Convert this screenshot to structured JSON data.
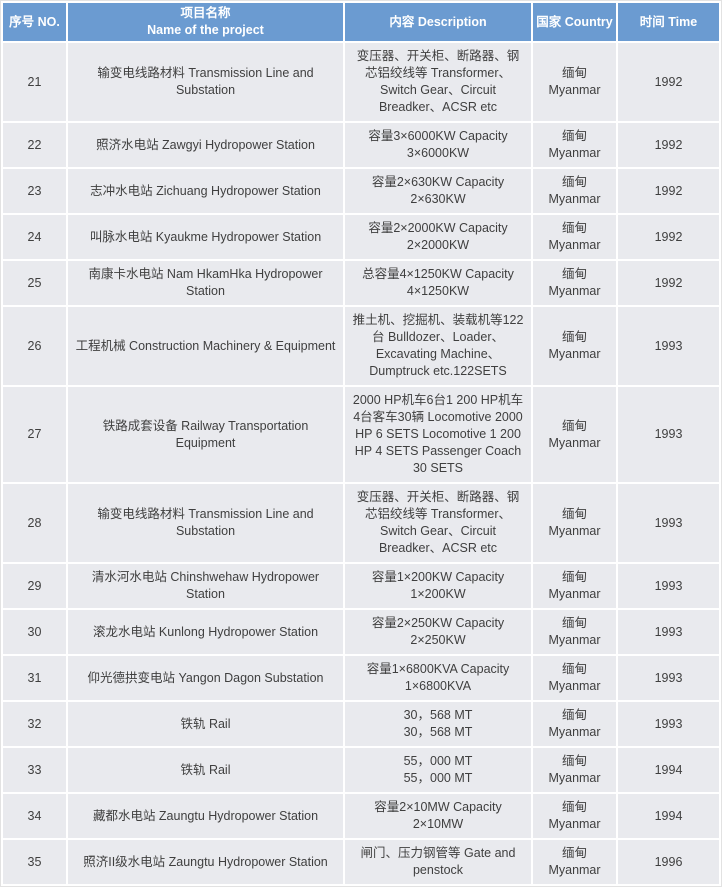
{
  "colors": {
    "header_bg": "#6B9BD1",
    "header_text": "#FFFFFF",
    "cell_bg": "#E9EAEE",
    "cell_text": "#3F3F3F",
    "divider": "#FFFFFF"
  },
  "table": {
    "headers": [
      "序号 NO.",
      "项目名称\nName of the project",
      "内容 Description",
      "国家 Country",
      "时间 Time"
    ],
    "rows": [
      {
        "no": "21",
        "name": "输变电线路材料 Transmission Line and Substation",
        "description": "变压器、开关柜、断路器、钢芯铝绞线等 Transformer、Switch Gear、Circuit Breadker、ACSR etc",
        "country": "缅甸 Myanmar",
        "time": "1992"
      },
      {
        "no": "22",
        "name": "照济水电站 Zawgyi Hydropower Station",
        "description": "容量3×6000KW Capacity 3×6000KW",
        "country": "缅甸 Myanmar",
        "time": "1992"
      },
      {
        "no": "23",
        "name": "志冲水电站 Zichuang Hydropower Station",
        "description": "容量2×630KW Capacity 2×630KW",
        "country": "缅甸 Myanmar",
        "time": "1992"
      },
      {
        "no": "24",
        "name": "叫脉水电站 Kyaukme Hydropower Station",
        "description": "容量2×2000KW Capacity 2×2000KW",
        "country": "缅甸 Myanmar",
        "time": "1992"
      },
      {
        "no": "25",
        "name": "南康卡水电站 Nam HkamHka Hydropower Station",
        "description": "总容量4×1250KW Capacity 4×1250KW",
        "country": "缅甸 Myanmar",
        "time": "1992"
      },
      {
        "no": "26",
        "name": "工程机械 Construction Machinery & Equipment",
        "description": "推土机、挖掘机、装载机等122台 Bulldozer、Loader、Excavating Machine、Dumptruck etc.122SETS",
        "country": "缅甸 Myanmar",
        "time": "1993"
      },
      {
        "no": "27",
        "name": "铁路成套设备 Railway Transportation Equipment",
        "description": "2000 HP机车6台1 200 HP机车4台客车30辆 Locomotive 2000 HP 6 SETS Locomotive 1 200 HP 4 SETS Passenger Coach 30 SETS",
        "country": "缅甸 Myanmar",
        "time": "1993"
      },
      {
        "no": "28",
        "name": "输变电线路材料 Transmission Line and Substation",
        "description": "变压器、开关柜、断路器、钢芯铝绞线等 Transformer、Switch Gear、Circuit Breadker、ACSR etc",
        "country": "缅甸 Myanmar",
        "time": "1993"
      },
      {
        "no": "29",
        "name": "清水河水电站 Chinshwehaw Hydropower Station",
        "description": "容量1×200KW Capacity 1×200KW",
        "country": "缅甸 Myanmar",
        "time": "1993"
      },
      {
        "no": "30",
        "name": "滚龙水电站 Kunlong Hydropower Station",
        "description": "容量2×250KW Capacity 2×250KW",
        "country": "缅甸 Myanmar",
        "time": "1993"
      },
      {
        "no": "31",
        "name": "仰光德拱变电站 Yangon Dagon Substation",
        "description": "容量1×6800KVA Capacity 1×6800KVA",
        "country": "缅甸 Myanmar",
        "time": "1993"
      },
      {
        "no": "32",
        "name": "铁轨 Rail",
        "description": "30，568 MT\n30，568 MT",
        "country": "缅甸 Myanmar",
        "time": "1993"
      },
      {
        "no": "33",
        "name": "铁轨 Rail",
        "description": "55，000 MT\n55，000 MT",
        "country": "缅甸 Myanmar",
        "time": "1994"
      },
      {
        "no": "34",
        "name": "藏都水电站 Zaungtu Hydropower Station",
        "description": "容量2×10MW Capacity 2×10MW",
        "country": "缅甸 Myanmar",
        "time": "1994"
      },
      {
        "no": "35",
        "name": "照济II级水电站 Zaungtu Hydropower Station",
        "description": "闸门、压力钢管等 Gate and penstock",
        "country": "缅甸 Myanmar",
        "time": "1996"
      }
    ]
  }
}
